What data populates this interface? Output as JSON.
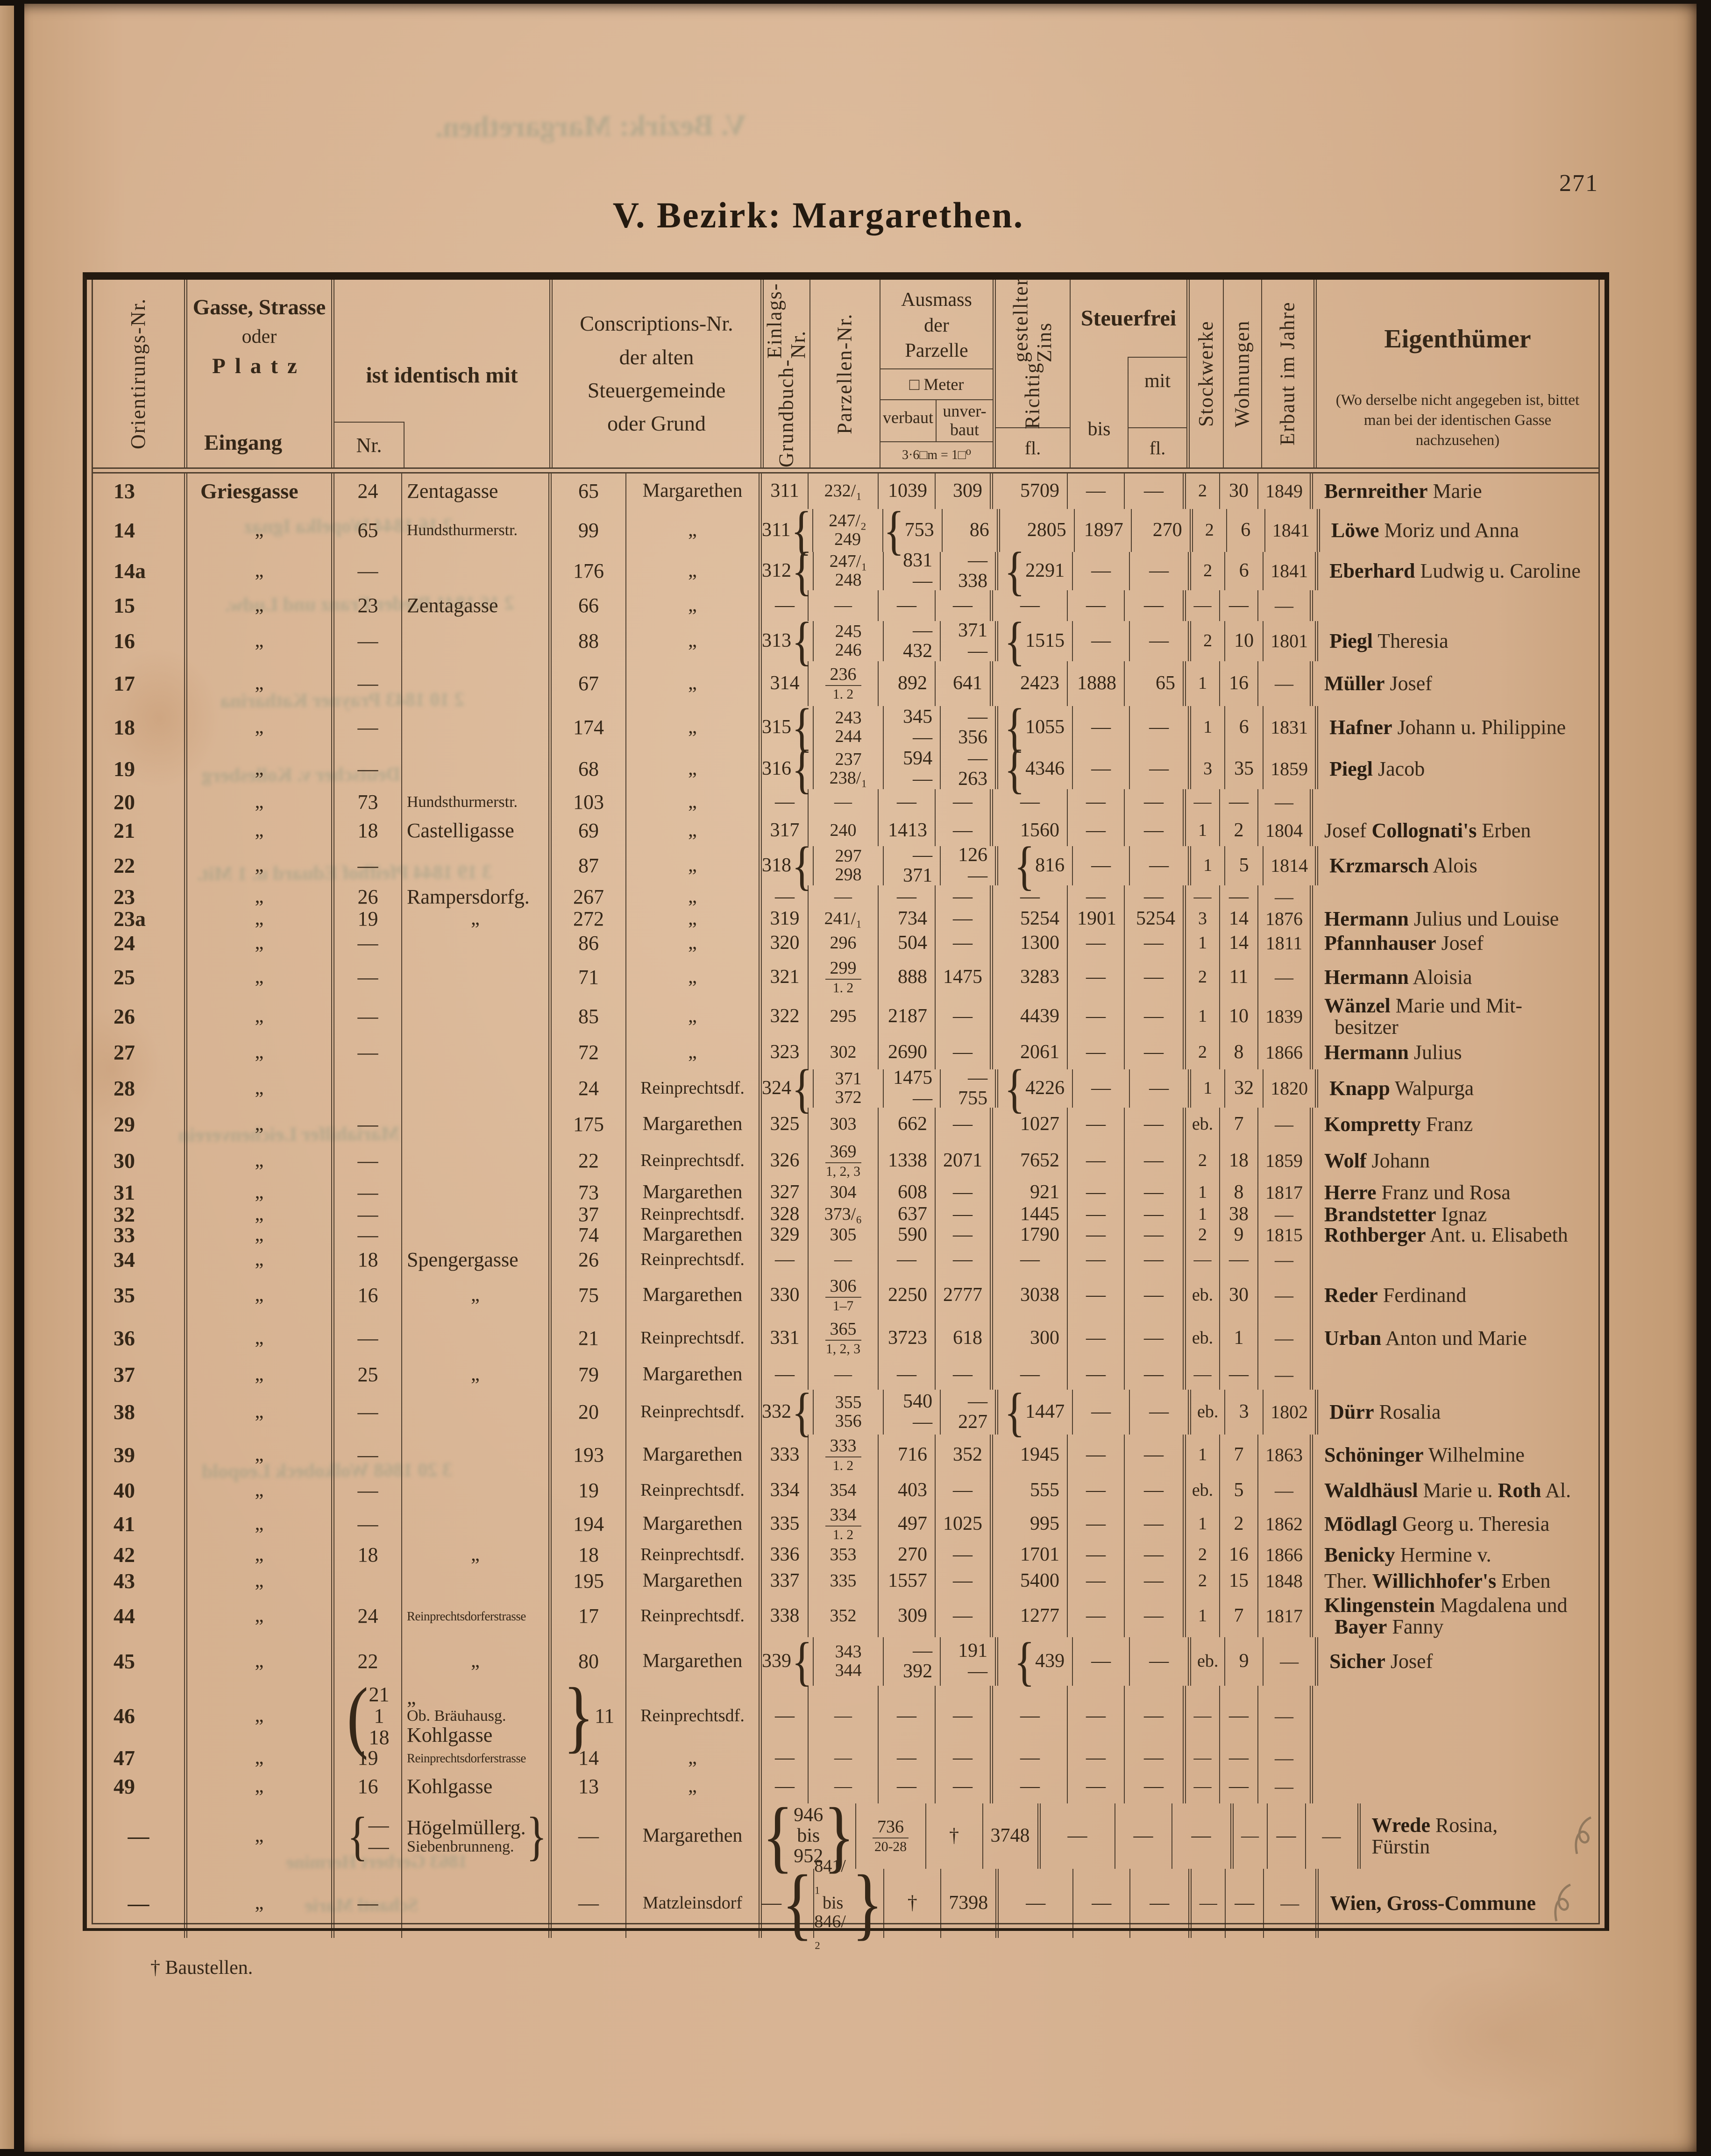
{
  "page": {
    "number": "271",
    "title": "V. Bezirk: Margarethen.",
    "footnote": "† Baustellen."
  },
  "header": {
    "orient": "Orientirungs-Nr.",
    "gasse_l1": "Gasse, Strasse",
    "gasse_l2": "oder",
    "gasse_l3": "Platz",
    "gasse_bottom": "Eingang",
    "ident": "ist identisch mit",
    "ident_nr": "Nr.",
    "conscr_l1": "**Conscriptions-Nr.**",
    "conscr_l2": "der **alten**",
    "conscr_l3": "**Steuergemeinde**",
    "conscr_l4": "oder **Grund**",
    "grundbuch_l1": "Grundbuch-",
    "grundbuch_l2": "Einlags-Nr.",
    "parz": "Parzellen-Nr.",
    "ausmass_l1": "**Ausmass**",
    "ausmass_l2": "der",
    "ausmass_l3": "**Parzelle**",
    "ausmass_meter": "□ Meter",
    "verbaut": "verbaut",
    "unverbaut_l1": "unver-",
    "unverbaut_l2": "baut",
    "ausmass_note": "3·6□m = 1□⁰",
    "zins_l1": "Richtig",
    "zins_l2": "gestellter Zins",
    "zins_unit": "fl.",
    "steuerfrei": "Steuerfrei",
    "bis": "bis",
    "mit": "mit",
    "mit_unit": "fl.",
    "stock": "Stockwerke",
    "wohn": "Wohnungen",
    "erbaut": "Erbaut im Jahre",
    "eigen": "Eigenthümer",
    "eigen_note": "(Wo derselbe nicht angegeben ist, bittet man bei der identischen Gasse nachzusehen)"
  },
  "bleedthrough": [
    "V. Bezirk: Margarethen.",
    "2 16 1844 Wopelka Ignaz",
    "2 16 1841 Bieder Franz und Ludw.",
    "2 10 1843 Prayner Katharina",
    "Deutscher v. Kollesberg",
    "3 19 1844 Pfeifhof Eduard u. 1 Mit.",
    "Mariahilfer Leichenverein",
    "3 20 1868 Wolkobeck Leopold",
    "1863 Gerbert Hermine",
    "Schantl Marie"
  ],
  "table": {
    "rows": [
      {
        "h": 76,
        "o": "13",
        "g": "Griesgasse",
        "inr": "24",
        "iname": "Zentagasse",
        "c": "65",
        "sg": "Margarethen",
        "gb": "311",
        "pz": "232/₁",
        "vb": "1039",
        "uv": "309",
        "z": "5709",
        "bi": "—",
        "mi": "—",
        "st": "2",
        "w": "30",
        "e": "1849",
        "own": "**Bernreither** Marie"
      },
      {
        "h": 92,
        "o": "14",
        "g": "„",
        "inr": "65",
        "iname": "Hundsthurmerstr.",
        "c": "99",
        "sg": "„",
        "gb": {
          "v": "311",
          "brR": "{",
          "bn": 2
        },
        "pz": "247/₂\n249",
        "vb": {
          "v": "753",
          "brL": "{",
          "bn": 2
        },
        "uv": "86",
        "z": "2805",
        "bi": "1897",
        "mi": "270",
        "st": "2",
        "w": "6",
        "e": "1841",
        "own": "**Löwe** Moriz und Anna"
      },
      {
        "h": 82,
        "o": "14a",
        "g": "„",
        "inr": "—",
        "iname": "",
        "c": "176",
        "sg": "„",
        "gb": {
          "v": "312",
          "brR": "{",
          "bn": 2
        },
        "pz": "247/₁\n248",
        "vb": "831\n—",
        "uv": "—\n338",
        "z": {
          "v": "2291",
          "brL": "{",
          "bn": 2
        },
        "bi": "—",
        "mi": "—",
        "st": "2",
        "w": "6",
        "e": "1841",
        "own": "**Eberhard** Ludwig u. Caroline"
      },
      {
        "h": 66,
        "o": "15",
        "g": "„",
        "inr": "23",
        "iname": "Zentagasse",
        "c": "66",
        "sg": "„",
        "gb": "—",
        "pz": "—",
        "vb": "—",
        "uv": "—",
        "z": "—",
        "bi": "—",
        "mi": "—",
        "st": "—",
        "w": "—",
        "e": "—",
        "own": ""
      },
      {
        "h": 86,
        "o": "16",
        "g": "„",
        "inr": "—",
        "iname": "",
        "c": "88",
        "sg": "„",
        "gb": {
          "v": "313",
          "brR": "{",
          "bn": 2
        },
        "pz": "245\n246",
        "vb": "—\n432",
        "uv": "371\n—",
        "z": {
          "v": "1515",
          "brL": "{",
          "bn": 2
        },
        "bi": "—",
        "mi": "—",
        "st": "2",
        "w": "10",
        "e": "1801",
        "own": "**Piegl** Theresia"
      },
      {
        "h": 96,
        "o": "17",
        "g": "„",
        "inr": "—",
        "iname": "",
        "c": "67",
        "sg": "„",
        "gb": "314",
        "pz": "236¦1. 2",
        "vb": "892",
        "uv": "641",
        "z": "2423",
        "bi": "1888",
        "mi": "65",
        "st": "1",
        "w": "16",
        "e": "—",
        "own": "**Müller** Josef"
      },
      {
        "h": 92,
        "o": "18",
        "g": "„",
        "inr": "—",
        "iname": "",
        "c": "174",
        "sg": "„",
        "gb": {
          "v": "315",
          "brR": "{",
          "bn": 2
        },
        "pz": "243\n244",
        "vb": "345\n—",
        "uv": "—\n356",
        "z": {
          "v": "1055",
          "brL": "{",
          "bn": 2
        },
        "bi": "—",
        "mi": "—",
        "st": "1",
        "w": "6",
        "e": "1831",
        "own": "**Hafner** Johann u. Philippine"
      },
      {
        "h": 86,
        "o": "19",
        "g": "„",
        "inr": "—",
        "iname": "",
        "c": "68",
        "sg": "„",
        "gb": {
          "v": "316",
          "brR": "{",
          "bn": 2
        },
        "pz": "237\n238/₁",
        "vb": "594\n—",
        "uv": "—\n263",
        "z": {
          "v": "4346",
          "brL": "{",
          "bn": 2
        },
        "bi": "—",
        "mi": "—",
        "st": "3",
        "w": "35",
        "e": "1859",
        "own": "**Piegl** Jacob"
      },
      {
        "h": 56,
        "o": "20",
        "g": "„",
        "inr": "73",
        "iname": "Hundsthurmerstr.",
        "c": "103",
        "sg": "„",
        "gb": "—",
        "pz": "—",
        "vb": "—",
        "uv": "—",
        "z": "—",
        "bi": "—",
        "mi": "—",
        "st": "—",
        "w": "—",
        "e": "—",
        "own": ""
      },
      {
        "h": 66,
        "o": "21",
        "g": "„",
        "inr": "18",
        "iname": "Castelligasse",
        "c": "69",
        "sg": "„",
        "gb": "317",
        "pz": "240",
        "vb": "1413",
        "uv": "—",
        "z": "1560",
        "bi": "—",
        "mi": "—",
        "st": "1",
        "w": "2",
        "e": "1804",
        "own": "Josef **Collognati's** Erben"
      },
      {
        "h": 84,
        "o": "22",
        "g": "„",
        "inr": "—",
        "iname": "",
        "c": "87",
        "sg": "„",
        "gb": {
          "v": "318",
          "brR": "{",
          "bn": 2
        },
        "pz": "297\n298",
        "vb": "—\n371",
        "uv": "126\n—",
        "z": {
          "v": "816",
          "brL": "{",
          "bn": 2
        },
        "bi": "—",
        "mi": "—",
        "st": "1",
        "w": "5",
        "e": "1814",
        "own": "**Krzmarsch** Alois"
      },
      {
        "h": 50,
        "o": "23",
        "g": "„",
        "inr": "26",
        "iname": "Rampersdorfg.",
        "c": "267",
        "sg": "„",
        "gb": "—",
        "pz": "—",
        "vb": "—",
        "uv": "—",
        "z": "—",
        "bi": "—",
        "mi": "—",
        "st": "—",
        "w": "—",
        "e": "—",
        "own": ""
      },
      {
        "h": 44,
        "o": "23a",
        "g": "„",
        "inr": "19",
        "iname": "„",
        "c": "272",
        "sg": "„",
        "gb": "319",
        "pz": "241/₁",
        "vb": "734",
        "uv": "—",
        "z": "5254",
        "bi": "1901",
        "mi": "5254",
        "st": "3",
        "w": "14",
        "e": "1876",
        "own": "**Hermann** Julius und Louise"
      },
      {
        "h": 60,
        "o": "24",
        "g": "„",
        "inr": "—",
        "iname": "",
        "c": "86",
        "sg": "„",
        "gb": "320",
        "pz": "296",
        "vb": "504",
        "uv": "—",
        "z": "1300",
        "bi": "—",
        "mi": "—",
        "st": "1",
        "w": "14",
        "e": "1811",
        "own": "**Pfannhauser** Josef"
      },
      {
        "h": 86,
        "o": "25",
        "g": "„",
        "inr": "—",
        "iname": "",
        "c": "71",
        "sg": "„",
        "gb": "321",
        "pz": "299¦1. 2",
        "vb": "888",
        "uv": "1475",
        "z": "3283",
        "bi": "—",
        "mi": "—",
        "st": "2",
        "w": "11",
        "e": "—",
        "own": "**Hermann** Aloisia"
      },
      {
        "h": 82,
        "o": "26",
        "g": "„",
        "inr": "—",
        "iname": "",
        "c": "85",
        "sg": "„",
        "gb": "322",
        "pz": "295",
        "vb": "2187",
        "uv": "—",
        "z": "4439",
        "bi": "—",
        "mi": "—",
        "st": "1",
        "w": "10",
        "e": "1839",
        "own": "**Wänzel** Marie und Mit-\n besitzer"
      },
      {
        "h": 72,
        "o": "27",
        "g": "„",
        "inr": "—",
        "iname": "",
        "c": "72",
        "sg": "„",
        "gb": "323",
        "pz": "302",
        "vb": "2690",
        "uv": "—",
        "z": "2061",
        "bi": "—",
        "mi": "—",
        "st": "2",
        "w": "8",
        "e": "1866",
        "own": "**Hermann** Julius"
      },
      {
        "h": 82,
        "o": "28",
        "g": "„",
        "inr": "",
        "iname": "",
        "c": "24",
        "sg": "Reinprechtsdf.",
        "gb": {
          "v": "324",
          "brR": "{",
          "bn": 2
        },
        "pz": "371\n372",
        "vb": "1475\n—",
        "uv": "—\n755",
        "z": {
          "v": "4226",
          "brL": "{",
          "bn": 2
        },
        "bi": "—",
        "mi": "—",
        "st": "1",
        "w": "32",
        "e": "1820",
        "own": "**Knapp** Walpurga"
      },
      {
        "h": 72,
        "o": "29",
        "g": "„",
        "inr": "—",
        "iname": "",
        "c": "175",
        "sg": "Margarethen",
        "gb": "325",
        "pz": "303",
        "vb": "662",
        "uv": "—",
        "z": "1027",
        "bi": "—",
        "mi": "—",
        "st": "eb.",
        "w": "7",
        "e": "—",
        "own": "**Kompretty** Franz"
      },
      {
        "h": 84,
        "o": "30",
        "g": "„",
        "inr": "—",
        "iname": "",
        "c": "22",
        "sg": "Reinprechtsdf.",
        "gb": "326",
        "pz": "369¦1, 2, 3",
        "vb": "1338",
        "uv": "2071",
        "z": "7652",
        "bi": "—",
        "mi": "—",
        "st": "2",
        "w": "18",
        "e": "1859",
        "own": "**Wolf** Johann"
      },
      {
        "h": 52,
        "o": "31",
        "g": "„",
        "inr": "—",
        "iname": "",
        "c": "73",
        "sg": "Margarethen",
        "gb": "327",
        "pz": "304",
        "vb": "608",
        "uv": "—",
        "z": "921",
        "bi": "—",
        "mi": "—",
        "st": "1",
        "w": "8",
        "e": "1817",
        "own": "**Herre** Franz und Rosa"
      },
      {
        "h": 42,
        "o": "32",
        "g": "„",
        "inr": "—",
        "iname": "",
        "c": "37",
        "sg": "Reinprechtsdf.",
        "gb": "328",
        "pz": "373/₆",
        "vb": "637",
        "uv": "—",
        "z": "1445",
        "bi": "—",
        "mi": "—",
        "st": "1",
        "w": "38",
        "e": "—",
        "own": "**Brandstetter** Ignaz"
      },
      {
        "h": 46,
        "o": "33",
        "g": "„",
        "inr": "—",
        "iname": "",
        "c": "74",
        "sg": "Margarethen",
        "gb": "329",
        "pz": "305",
        "vb": "590",
        "uv": "—",
        "z": "1790",
        "bi": "—",
        "mi": "—",
        "st": "2",
        "w": "9",
        "e": "1815",
        "own": "**Rothberger** Ant. u. Elisabeth"
      },
      {
        "h": 60,
        "o": "34",
        "g": "„",
        "inr": "18",
        "iname": "Spengergasse",
        "c": "26",
        "sg": "Reinprechtsdf.",
        "gb": "—",
        "pz": "—",
        "vb": "—",
        "uv": "—",
        "z": "—",
        "bi": "—",
        "mi": "—",
        "st": "—",
        "w": "—",
        "e": "—",
        "own": ""
      },
      {
        "h": 92,
        "o": "35",
        "g": "„",
        "inr": "16",
        "iname": "„",
        "c": "75",
        "sg": "Margarethen",
        "gb": "330",
        "pz": "306¦1–7",
        "vb": "2250",
        "uv": "2777",
        "z": "3038",
        "bi": "—",
        "mi": "—",
        "st": "eb.",
        "w": "30",
        "e": "—",
        "own": "**Reder** Ferdinand"
      },
      {
        "h": 92,
        "o": "36",
        "g": "„",
        "inr": "—",
        "iname": "",
        "c": "21",
        "sg": "Reinprechtsdf.",
        "gb": "331",
        "pz": "365¦1, 2, 3",
        "vb": "3723",
        "uv": "618",
        "z": "300",
        "bi": "—",
        "mi": "—",
        "st": "eb.",
        "w": "1",
        "e": "—",
        "own": "**Urban** Anton und Marie"
      },
      {
        "h": 64,
        "o": "37",
        "g": "„",
        "inr": "25",
        "iname": "„",
        "c": "79",
        "sg": "Margarethen",
        "gb": "—",
        "pz": "—",
        "vb": "—",
        "uv": "—",
        "z": "—",
        "bi": "—",
        "mi": "—",
        "st": "—",
        "w": "—",
        "e": "—",
        "own": ""
      },
      {
        "h": 96,
        "o": "38",
        "g": "„",
        "inr": "—",
        "iname": "",
        "c": "20",
        "sg": "Reinprechtsdf.",
        "gb": {
          "v": "332",
          "brR": "{",
          "bn": 2
        },
        "pz": "355\n356",
        "vb": "540\n—",
        "uv": "—\n227",
        "z": {
          "v": "1447",
          "brL": "{",
          "bn": 2
        },
        "bi": "—",
        "mi": "—",
        "st": "eb.",
        "w": "3",
        "e": "1802",
        "own": "**Dürr** Rosalia"
      },
      {
        "h": 88,
        "o": "39",
        "g": "„",
        "inr": "—",
        "iname": "",
        "c": "193",
        "sg": "Margarethen",
        "gb": "333",
        "pz": "333¦1. 2",
        "vb": "716",
        "uv": "352",
        "z": "1945",
        "bi": "—",
        "mi": "—",
        "st": "1",
        "w": "7",
        "e": "1863",
        "own": "**Schöninger** Wilhelmine"
      },
      {
        "h": 64,
        "o": "40",
        "g": "„",
        "inr": "—",
        "iname": "",
        "c": "19",
        "sg": "Reinprechtsdf.",
        "gb": "334",
        "pz": "354",
        "vb": "403",
        "uv": "—",
        "z": "555",
        "bi": "—",
        "mi": "—",
        "st": "eb.",
        "w": "5",
        "e": "—",
        "own": "**Waldhäusl** Marie u. **Roth** Al."
      },
      {
        "h": 80,
        "o": "41",
        "g": "„",
        "inr": "—",
        "iname": "",
        "c": "194",
        "sg": "Margarethen",
        "gb": "335",
        "pz": "334¦1. 2",
        "vb": "497",
        "uv": "1025",
        "z": "995",
        "bi": "—",
        "mi": "—",
        "st": "1",
        "w": "2",
        "e": "1862",
        "own": "**Mödlagl** Georg u. Theresia"
      },
      {
        "h": 52,
        "o": "42",
        "g": "„",
        "inr": "18",
        "iname": "„",
        "c": "18",
        "sg": "Reinprechtsdf.",
        "gb": "336",
        "pz": "353",
        "vb": "270",
        "uv": "—",
        "z": "1701",
        "bi": "—",
        "mi": "—",
        "st": "2",
        "w": "16",
        "e": "1866",
        "own": "**Benicky** Hermine v."
      },
      {
        "h": 60,
        "o": "43",
        "g": "„",
        "inr": "",
        "iname": "",
        "c": "195",
        "sg": "Margarethen",
        "gb": "337",
        "pz": "335",
        "vb": "1557",
        "uv": "—",
        "z": "5400",
        "bi": "—",
        "mi": "—",
        "st": "2",
        "w": "15",
        "e": "1848",
        "own": "Ther. **Willichhofer's** Erben"
      },
      {
        "h": 90,
        "o": "44",
        "g": "„",
        "inr": "24",
        "iname": "Reinprechtsdorferstrasse",
        "c": "17",
        "sg": "Reinprechtsdf.",
        "gb": "338",
        "pz": "352",
        "vb": "309",
        "uv": "—",
        "z": "1277",
        "bi": "—",
        "mi": "—",
        "st": "1",
        "w": "7",
        "e": "1817",
        "own": "**Klingenstein** Magdalena und\n **Bayer** Fanny"
      },
      {
        "h": 104,
        "o": "45",
        "g": "„",
        "inr": "22",
        "iname": "„",
        "c": "80",
        "sg": "Margarethen",
        "gb": {
          "v": "339",
          "brR": "{",
          "bn": 2
        },
        "pz": "343\n344",
        "vb": "—\n392",
        "uv": "191\n—",
        "z": {
          "v": "439",
          "brL": "{",
          "bn": 2
        },
        "bi": "—",
        "mi": "—",
        "st": "eb.",
        "w": "9",
        "e": "—",
        "own": "**Sicher** Josef"
      },
      {
        "h": 130,
        "o": "46",
        "g": "„",
        "inr": {
          "v": "21\n1\n18",
          "brL": "(",
          "bn": 3
        },
        "iname": "„\nOb. Bräuhausg.\nKohlgasse",
        "c": {
          "v": "11",
          "brL": "}",
          "bn": 3
        },
        "sg": "Reinprechtsdf.",
        "gb": "—",
        "pz": "—",
        "vb": "—",
        "uv": "—",
        "z": "—",
        "bi": "—",
        "mi": "—",
        "st": "—",
        "w": "—",
        "e": "—",
        "own": ""
      },
      {
        "h": 50,
        "o": "47",
        "g": "„",
        "inr": "19",
        "iname": "Reinprechtsdorferstrasse",
        "c": "14",
        "sg": "„",
        "gb": "—",
        "pz": "—",
        "vb": "—",
        "uv": "—",
        "z": "—",
        "bi": "—",
        "mi": "—",
        "st": "—",
        "w": "—",
        "e": "—",
        "own": ""
      },
      {
        "h": 72,
        "o": "49",
        "g": "„",
        "inr": "16",
        "iname": "Kohlgasse",
        "c": "13",
        "sg": "„",
        "gb": "—",
        "pz": "—",
        "vb": "—",
        "uv": "—",
        "z": "—",
        "bi": "—",
        "mi": "—",
        "st": "—",
        "w": "—",
        "e": "—",
        "own": ""
      },
      {
        "h": 140,
        "o": "—",
        "g": "„",
        "inr": {
          "v": "—\n—",
          "brL": "{",
          "bn": 2
        },
        "iname": {
          "v": "Högelmüllerg.\nSiebenbrunneng.",
          "brR": "}",
          "bn": 2
        },
        "c": "—",
        "sg": "Margarethen",
        "gb": {
          "v": "946\nbis\n952",
          "brL": "{",
          "brR": "}",
          "bn": 3
        },
        "pz": "736¦20-28",
        "vb": "†",
        "uv": "3748",
        "z": "—",
        "bi": "—",
        "mi": "—",
        "st": "—",
        "w": "—",
        "e": "—",
        "own": "**Wrede** Rosina, Fürstin",
        "mark": 1
      },
      {
        "h": 148,
        "o": "—",
        "g": "„",
        "inr": "—",
        "iname": "",
        "c": "—",
        "sg": "Matzleinsdorf",
        "gb": {
          "v": "—",
          "brR": "{",
          "bn": 3
        },
        "pz": {
          "v": "841/₁\nbis\n846/₂",
          "brR": "}",
          "bn": 3
        },
        "vb": "†",
        "uv": "7398",
        "z": "—",
        "bi": "—",
        "mi": "—",
        "st": "—",
        "w": "—",
        "e": "—",
        "own": "**Wien, Gross-Commune**",
        "mark": 1
      }
    ]
  }
}
